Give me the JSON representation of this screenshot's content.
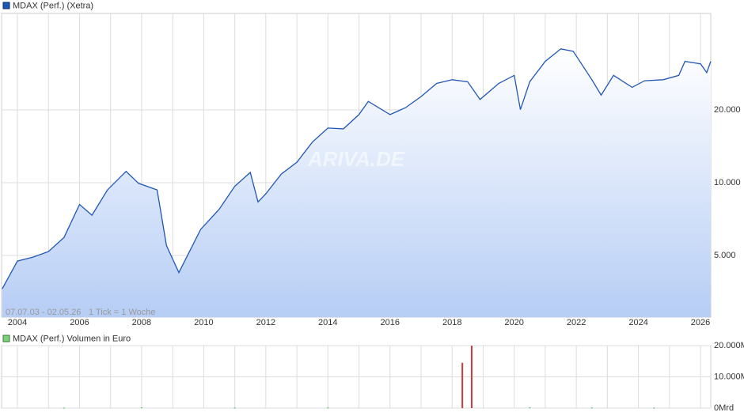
{
  "chart_data": [
    {
      "type": "line",
      "legend_title": "MDAX (Perf.) (Xetra)",
      "range_note": "07.07.03 - 02.05.26",
      "tick_note": "1 Tick = 1 Woche",
      "watermark": "ARIVA.DE",
      "log_scale": true,
      "grid": true,
      "xlim": [
        2003.49,
        2026.33
      ],
      "xticks": [
        2004,
        2006,
        2008,
        2010,
        2012,
        2014,
        2016,
        2018,
        2020,
        2022,
        2024,
        2026
      ],
      "x_minor_ticks": [
        2005,
        2007,
        2009,
        2011,
        2013,
        2015,
        2017,
        2019,
        2021,
        2023,
        2025
      ],
      "ylim": [
        2780,
        50100
      ],
      "yticks": [
        {
          "value": 5000,
          "label": "5.000"
        },
        {
          "value": 10000,
          "label": "10.000"
        },
        {
          "value": 20000,
          "label": "20.000"
        }
      ],
      "series": [
        {
          "name": "MDAX (Perf.) (Xetra)",
          "color": "#1f57b4",
          "x": [
            2003.51,
            2004.0,
            2004.5,
            2005.0,
            2005.5,
            2006.0,
            2006.4,
            2006.9,
            2007.5,
            2007.9,
            2008.5,
            2008.8,
            2009.2,
            2009.9,
            2010.5,
            2011.0,
            2011.5,
            2011.75,
            2012.0,
            2012.5,
            2013.0,
            2013.5,
            2014.0,
            2014.5,
            2015.0,
            2015.3,
            2016.0,
            2016.5,
            2017.0,
            2017.5,
            2018.0,
            2018.5,
            2018.9,
            2019.5,
            2020.0,
            2020.2,
            2020.5,
            2021.0,
            2021.5,
            2021.9,
            2022.5,
            2022.8,
            2023.2,
            2023.8,
            2024.2,
            2024.8,
            2025.3,
            2025.5,
            2026.0,
            2026.2,
            2026.33
          ],
          "values": [
            3640,
            4740,
            4925,
            5190,
            5940,
            8130,
            7340,
            9340,
            11140,
            9940,
            9340,
            5500,
            4250,
            6410,
            7770,
            9670,
            11030,
            8330,
            8990,
            10860,
            12150,
            14710,
            16830,
            16700,
            19120,
            21680,
            19120,
            20440,
            22700,
            25720,
            26650,
            26150,
            22080,
            25720,
            27790,
            20050,
            26150,
            31740,
            35750,
            34950,
            26650,
            23030,
            27790,
            24790,
            26400,
            26650,
            27790,
            31740,
            31000,
            28540,
            31740
          ]
        }
      ]
    },
    {
      "type": "bar",
      "legend_title": "MDAX (Perf.) Volumen in Euro",
      "grid": true,
      "xlim": [
        2003.49,
        2026.33
      ],
      "x_minor_ticks": [
        2004,
        2005,
        2006,
        2007,
        2008,
        2009,
        2010,
        2011,
        2012,
        2013,
        2014,
        2015,
        2016,
        2017,
        2018,
        2019,
        2020,
        2021,
        2022,
        2023,
        2024,
        2025,
        2026
      ],
      "ylim": [
        0,
        20000
      ],
      "yticks": [
        {
          "value": 0,
          "label": "0Mrd"
        },
        {
          "value": 10000,
          "label": "10.000M"
        },
        {
          "value": 20000,
          "label": "20.000M"
        }
      ],
      "series": [
        {
          "name": "MDAX (Perf.) Volumen in Euro",
          "colors": [
            "#4caf50",
            "#4caf50",
            "#4caf50",
            "#4caf50",
            "#c83c3c",
            "#c83c3c",
            "#4caf50",
            "#4caf50",
            "#4caf50"
          ],
          "x": [
            2005.5,
            2008.0,
            2011.0,
            2014.0,
            2018.33,
            2018.63,
            2020.5,
            2022.5,
            2024.5
          ],
          "values": [
            150,
            200,
            150,
            180,
            14500,
            20000,
            200,
            180,
            150
          ]
        }
      ]
    }
  ]
}
